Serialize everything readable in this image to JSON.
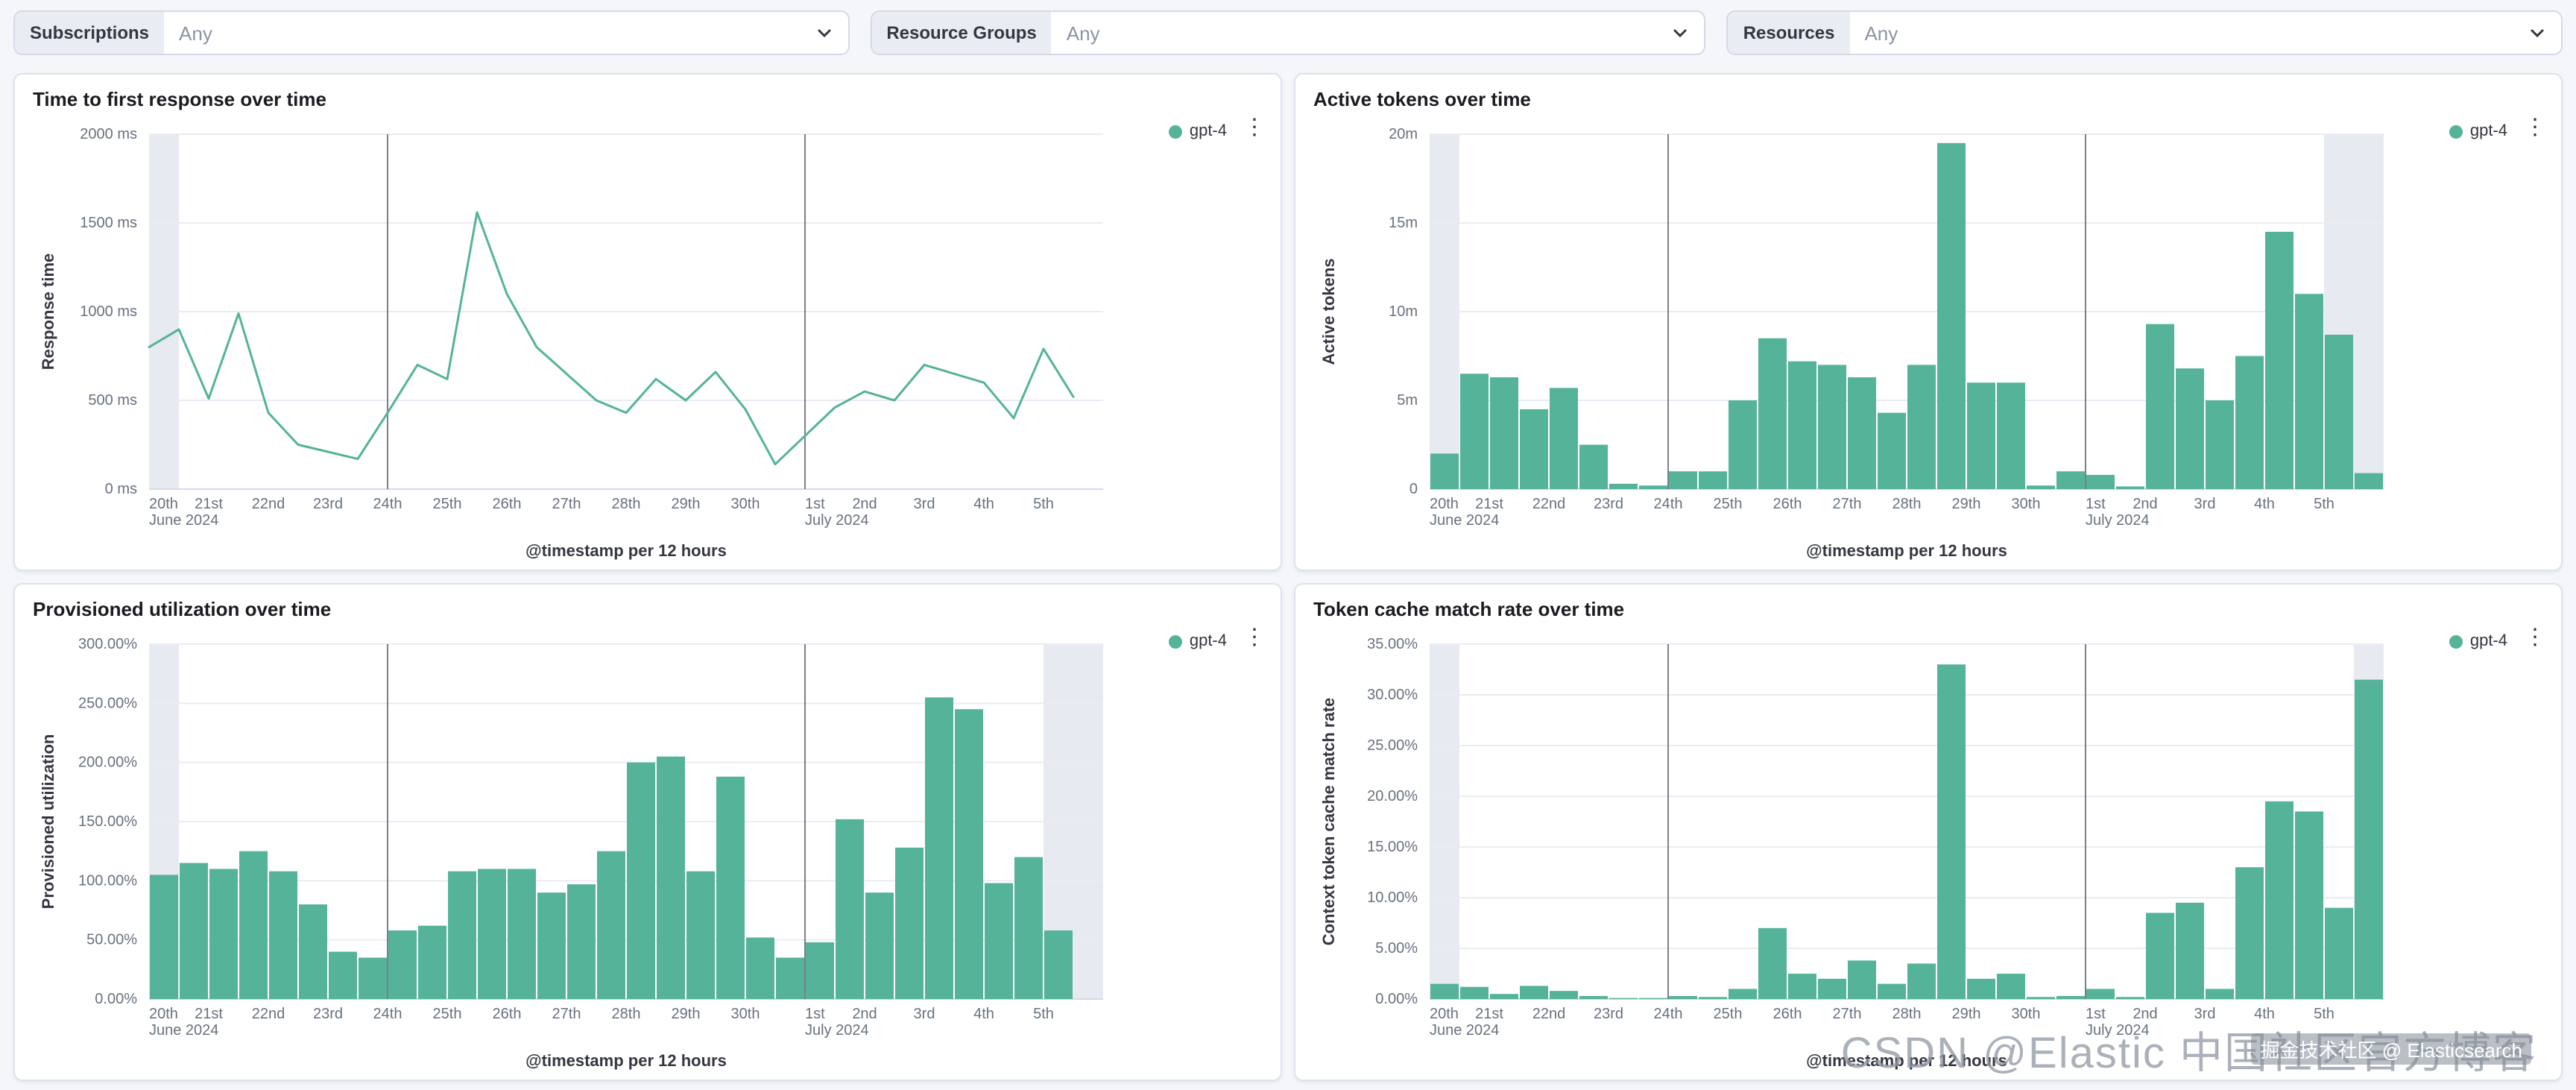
{
  "filters": [
    {
      "label": "Subscriptions",
      "value": "Any"
    },
    {
      "label": "Resource Groups",
      "value": "Any"
    },
    {
      "label": "Resources",
      "value": "Any"
    }
  ],
  "watermark": {
    "large": "CSDN @Elastic 中国社区官方博客",
    "small": "掘金技术社区 @ Elasticsearch"
  },
  "chart_data": [
    {
      "type": "line",
      "title": "Time to first response over time",
      "xlabel": "@timestamp per 12 hours",
      "ylabel": "Response time",
      "ylim": [
        0,
        2000
      ],
      "ytick_values": [
        0,
        500,
        1000,
        1500,
        2000
      ],
      "ytick_labels": [
        "0 ms",
        "500 ms",
        "1000 ms",
        "1500 ms",
        "2000 ms"
      ],
      "x_days": [
        "20th",
        "21st",
        "22nd",
        "23rd",
        "24th",
        "25th",
        "26th",
        "27th",
        "28th",
        "29th",
        "30th",
        "1st",
        "2nd",
        "3rd",
        "4th",
        "5th"
      ],
      "x_sublabels": [
        {
          "index": 0,
          "text": "June 2024"
        },
        {
          "index": 11,
          "text": "July 2024"
        }
      ],
      "buckets_per_day": 2,
      "annotation_lines_day_index": [
        4,
        11
      ],
      "partial_bucket_indices": [
        0
      ],
      "color": "#54b399",
      "series": [
        {
          "name": "gpt-4",
          "values": [
            800,
            900,
            510,
            990,
            430,
            250,
            210,
            170,
            430,
            700,
            620,
            1560,
            1100,
            800,
            650,
            500,
            430,
            620,
            500,
            660,
            450,
            140,
            300,
            460,
            550,
            500,
            700,
            650,
            600,
            400,
            790,
            520
          ]
        }
      ]
    },
    {
      "type": "bar",
      "title": "Active tokens over time",
      "xlabel": "@timestamp per 12 hours",
      "ylabel": "Active tokens",
      "ylim": [
        0,
        20
      ],
      "ytick_values": [
        0,
        5,
        10,
        15,
        20
      ],
      "ytick_labels": [
        "0",
        "5m",
        "10m",
        "15m",
        "20m"
      ],
      "x_days": [
        "20th",
        "21st",
        "22nd",
        "23rd",
        "24th",
        "25th",
        "26th",
        "27th",
        "28th",
        "29th",
        "30th",
        "1st",
        "2nd",
        "3rd",
        "4th",
        "5th"
      ],
      "x_sublabels": [
        {
          "index": 0,
          "text": "June 2024"
        },
        {
          "index": 11,
          "text": "July 2024"
        }
      ],
      "buckets_per_day": 2,
      "annotation_lines_day_index": [
        4,
        11
      ],
      "partial_bucket_indices": [
        0,
        30,
        31
      ],
      "color": "#54b399",
      "series": [
        {
          "name": "gpt-4",
          "values": [
            2,
            6.5,
            6.3,
            4.5,
            5.7,
            2.5,
            0.3,
            0.2,
            1,
            1,
            5,
            8.5,
            7.2,
            7,
            6.3,
            4.3,
            7,
            19.5,
            6,
            6,
            0.2,
            1,
            0.8,
            0.15,
            9.3,
            6.8,
            5,
            7.5,
            14.5,
            11,
            8.7,
            0.9
          ]
        }
      ]
    },
    {
      "type": "bar",
      "title": "Provisioned utilization over time",
      "xlabel": "@timestamp per 12 hours",
      "ylabel": "Provisioned utilization",
      "ylim": [
        0,
        300
      ],
      "ytick_values": [
        0,
        50,
        100,
        150,
        200,
        250,
        300
      ],
      "ytick_labels": [
        "0.00%",
        "50.00%",
        "100.00%",
        "150.00%",
        "200.00%",
        "250.00%",
        "300.00%"
      ],
      "x_days": [
        "20th",
        "21st",
        "22nd",
        "23rd",
        "24th",
        "25th",
        "26th",
        "27th",
        "28th",
        "29th",
        "30th",
        "1st",
        "2nd",
        "3rd",
        "4th",
        "5th"
      ],
      "x_sublabels": [
        {
          "index": 0,
          "text": "June 2024"
        },
        {
          "index": 11,
          "text": "July 2024"
        }
      ],
      "buckets_per_day": 2,
      "annotation_lines_day_index": [
        4,
        11
      ],
      "partial_bucket_indices": [
        0,
        30,
        31
      ],
      "color": "#54b399",
      "series": [
        {
          "name": "gpt-4",
          "values": [
            105,
            115,
            110,
            125,
            108,
            80,
            40,
            35,
            58,
            62,
            108,
            110,
            110,
            90,
            97,
            125,
            200,
            205,
            108,
            188,
            52,
            35,
            48,
            152,
            90,
            128,
            255,
            245,
            98,
            120,
            58,
            0
          ]
        }
      ]
    },
    {
      "type": "bar",
      "title": "Token cache match rate over time",
      "xlabel": "@timestamp per 12 hours",
      "ylabel": "Context token cache match rate",
      "ylim": [
        0,
        35
      ],
      "ytick_values": [
        0,
        5,
        10,
        15,
        20,
        25,
        30,
        35
      ],
      "ytick_labels": [
        "0.00%",
        "5.00%",
        "10.00%",
        "15.00%",
        "20.00%",
        "25.00%",
        "30.00%",
        "35.00%"
      ],
      "x_days": [
        "20th",
        "21st",
        "22nd",
        "23rd",
        "24th",
        "25th",
        "26th",
        "27th",
        "28th",
        "29th",
        "30th",
        "1st",
        "2nd",
        "3rd",
        "4th",
        "5th"
      ],
      "x_sublabels": [
        {
          "index": 0,
          "text": "June 2024"
        },
        {
          "index": 11,
          "text": "July 2024"
        }
      ],
      "buckets_per_day": 2,
      "annotation_lines_day_index": [
        4,
        11
      ],
      "partial_bucket_indices": [
        0,
        31
      ],
      "color": "#54b399",
      "series": [
        {
          "name": "gpt-4",
          "values": [
            1.5,
            1.2,
            0.5,
            1.3,
            0.8,
            0.3,
            0.1,
            0.1,
            0.3,
            0.2,
            1,
            7,
            2.5,
            2,
            3.8,
            1.5,
            3.5,
            33,
            2,
            2.5,
            0.2,
            0.3,
            1,
            0.2,
            8.5,
            9.5,
            1,
            13,
            19.5,
            18.5,
            9,
            31.5
          ]
        }
      ]
    }
  ]
}
